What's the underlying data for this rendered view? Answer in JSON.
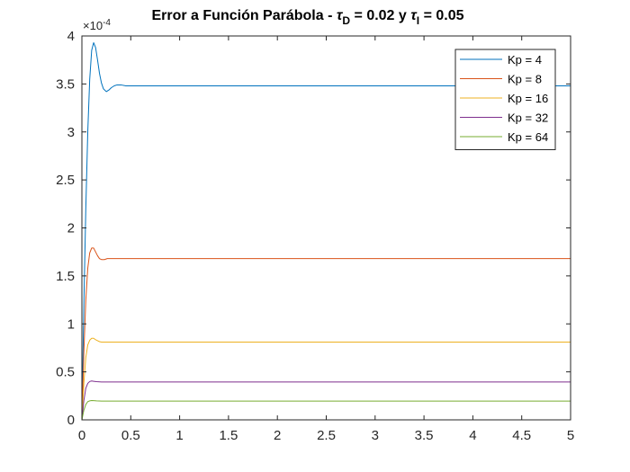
{
  "chart_data": {
    "type": "line",
    "title_parts": [
      "Error a Función Parábola - ",
      "τ",
      "D",
      " = 0.02 y ",
      "τ",
      "I",
      " = 0.05"
    ],
    "xlim": [
      0,
      5
    ],
    "ylim": [
      0,
      0.0004
    ],
    "x_ticks": [
      "0",
      "0.5",
      "1",
      "1.5",
      "2",
      "2.5",
      "3",
      "3.5",
      "4",
      "4.5",
      "5"
    ],
    "y_ticks": [
      "0",
      "0.5",
      "1",
      "1.5",
      "2",
      "2.5",
      "3",
      "3.5",
      "4"
    ],
    "y_exponent": [
      "×10",
      "-4"
    ],
    "grid": false,
    "legend_position": "top-right",
    "series": [
      {
        "name": "Kp = 4",
        "color": "#0072BD",
        "x": [
          0,
          0.02,
          0.04,
          0.06,
          0.08,
          0.1,
          0.12,
          0.14,
          0.16,
          0.18,
          0.2,
          0.22,
          0.25,
          0.28,
          0.3,
          0.33,
          0.36,
          0.4,
          0.45,
          0.5,
          0.6,
          0.8,
          1.0,
          2.0,
          3.0,
          4.0,
          5.0
        ],
        "y": [
          0,
          0.00012,
          0.00022,
          0.0003,
          0.000355,
          0.000385,
          0.000393,
          0.000388,
          0.000375,
          0.000361,
          0.000351,
          0.000345,
          0.000342,
          0.000344,
          0.000346,
          0.000348,
          0.000349,
          0.000349,
          0.000348,
          0.000348,
          0.000348,
          0.000348,
          0.000348,
          0.000348,
          0.000348,
          0.000348,
          0.000348
        ]
      },
      {
        "name": "Kp = 8",
        "color": "#D95319",
        "x": [
          0,
          0.02,
          0.04,
          0.06,
          0.08,
          0.1,
          0.12,
          0.14,
          0.16,
          0.18,
          0.2,
          0.23,
          0.26,
          0.3,
          0.4,
          0.5,
          1.0,
          2.0,
          3.0,
          4.0,
          5.0
        ],
        "y": [
          0,
          7e-05,
          0.000125,
          0.000158,
          0.000174,
          0.000179,
          0.000179,
          0.000175,
          0.000171,
          0.000168,
          0.000167,
          0.000167,
          0.000168,
          0.000168,
          0.000168,
          0.000168,
          0.000168,
          0.000168,
          0.000168,
          0.000168,
          0.000168
        ]
      },
      {
        "name": "Kp = 16",
        "color": "#EDB120",
        "x": [
          0,
          0.02,
          0.04,
          0.06,
          0.08,
          0.1,
          0.12,
          0.14,
          0.16,
          0.18,
          0.2,
          0.25,
          0.3,
          0.5,
          1.0,
          2.0,
          3.0,
          4.0,
          5.0
        ],
        "y": [
          0,
          3.8e-05,
          6.5e-05,
          7.8e-05,
          8.3e-05,
          8.5e-05,
          8.5e-05,
          8.35e-05,
          8.25e-05,
          8.15e-05,
          8.1e-05,
          8.1e-05,
          8.1e-05,
          8.1e-05,
          8.1e-05,
          8.1e-05,
          8.1e-05,
          8.1e-05,
          8.1e-05
        ]
      },
      {
        "name": "Kp = 32",
        "color": "#7E2F8E",
        "x": [
          0,
          0.02,
          0.04,
          0.06,
          0.08,
          0.1,
          0.12,
          0.15,
          0.2,
          0.3,
          0.5,
          1.0,
          2.0,
          3.0,
          4.0,
          5.0
        ],
        "y": [
          0,
          2e-05,
          3.3e-05,
          3.8e-05,
          4e-05,
          4.05e-05,
          4.02e-05,
          3.98e-05,
          3.95e-05,
          3.95e-05,
          3.95e-05,
          3.95e-05,
          3.95e-05,
          3.95e-05,
          3.95e-05,
          3.95e-05
        ]
      },
      {
        "name": "Kp = 64",
        "color": "#77AC30",
        "x": [
          0,
          0.02,
          0.04,
          0.06,
          0.08,
          0.1,
          0.12,
          0.15,
          0.2,
          0.3,
          0.5,
          1.0,
          2.0,
          3.0,
          4.0,
          5.0
        ],
        "y": [
          0,
          1e-05,
          1.6e-05,
          1.9e-05,
          1.98e-05,
          2.01e-05,
          2e-05,
          1.98e-05,
          1.96e-05,
          1.96e-05,
          1.96e-05,
          1.96e-05,
          1.96e-05,
          1.96e-05,
          1.96e-05,
          1.96e-05
        ]
      }
    ]
  }
}
